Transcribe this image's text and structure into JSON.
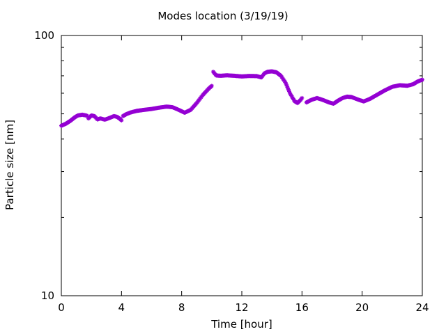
{
  "chart_data": {
    "type": "scatter",
    "title": "Modes location (3/19/19)",
    "xlabel": "Time [hour]",
    "ylabel": "Particle size [nm]",
    "xlim": [
      0,
      24
    ],
    "ylim": [
      10,
      100
    ],
    "yscale": "log",
    "xticks": [
      0,
      4,
      8,
      12,
      16,
      20,
      24
    ],
    "yticks_labeled": [
      10,
      100
    ],
    "grid": false,
    "legend": "none",
    "marker": "star",
    "color": "#9400d3",
    "segments": [
      {
        "x": [
          0.0,
          0.3,
          0.6,
          0.9,
          1.1,
          1.4,
          1.7
        ],
        "y": [
          45.0,
          45.8,
          47.0,
          48.5,
          49.3,
          49.6,
          49.2
        ]
      },
      {
        "x": [
          1.8,
          2.0,
          2.2,
          2.4,
          2.6,
          2.9,
          3.2,
          3.5,
          3.7,
          3.9,
          4.0
        ],
        "y": [
          48.0,
          49.3,
          49.0,
          47.6,
          48.0,
          47.5,
          48.2,
          49.0,
          48.7,
          47.8,
          47.2
        ]
      },
      {
        "x": [
          4.1,
          4.3,
          4.6,
          5.0,
          5.5,
          6.0,
          6.5,
          7.0,
          7.4,
          7.8,
          8.2,
          8.6,
          9.0,
          9.4,
          9.8,
          10.0
        ],
        "y": [
          49.0,
          49.8,
          50.6,
          51.3,
          51.8,
          52.2,
          52.8,
          53.3,
          53.0,
          51.8,
          50.5,
          51.8,
          55.0,
          59.0,
          62.5,
          64.0
        ]
      },
      {
        "x": [
          10.1,
          10.3,
          10.6,
          11.0,
          11.5,
          12.0,
          12.5,
          13.0,
          13.3,
          13.5,
          13.7,
          14.0,
          14.3,
          14.6,
          14.9,
          15.2,
          15.5,
          15.7,
          15.9,
          16.0
        ],
        "y": [
          72.5,
          70.2,
          70.0,
          70.3,
          70.0,
          69.6,
          69.9,
          69.8,
          69.0,
          71.5,
          72.5,
          72.8,
          72.2,
          70.0,
          66.0,
          60.0,
          56.0,
          55.0,
          56.5,
          57.5
        ]
      },
      {
        "x": [
          16.3,
          16.6,
          17.0,
          17.4,
          17.8,
          18.1,
          18.4,
          18.7,
          19.0,
          19.3,
          19.7,
          20.1,
          20.5,
          21.0,
          21.5,
          22.0,
          22.5,
          23.0,
          23.4,
          23.7,
          24.0
        ],
        "y": [
          55.3,
          56.5,
          57.5,
          56.5,
          55.3,
          54.7,
          56.2,
          57.5,
          58.2,
          58.0,
          56.8,
          55.8,
          57.0,
          59.2,
          61.5,
          63.5,
          64.4,
          64.1,
          65.0,
          66.6,
          67.6
        ]
      }
    ]
  }
}
